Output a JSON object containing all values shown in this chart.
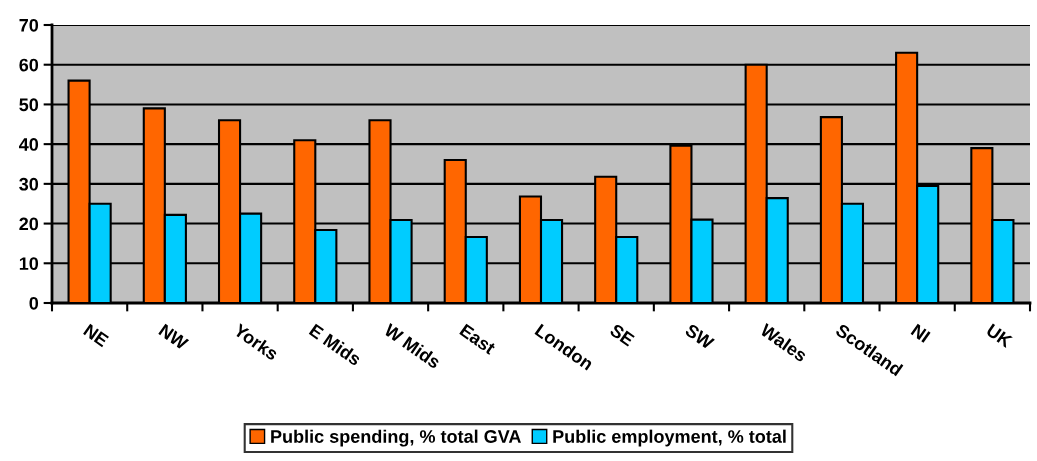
{
  "chart_data": {
    "type": "bar",
    "categories": [
      "NE",
      "NW",
      "Yorks",
      "E Mids",
      "W Mids",
      "East",
      "London",
      "SE",
      "SW",
      "Wales",
      "Scotland",
      "NI",
      "UK"
    ],
    "series": [
      {
        "name": "Public spending, % total GVA",
        "color": "#ff6600",
        "values": [
          56,
          49,
          46,
          41,
          46,
          36,
          26.8,
          31.8,
          39.6,
          60,
          46.8,
          63,
          39
        ]
      },
      {
        "name": "Public employment, % total",
        "color": "#00ccff",
        "values": [
          25,
          22.2,
          22.5,
          18.4,
          20.9,
          16.6,
          20.9,
          16.6,
          21,
          26.4,
          25,
          29.5,
          20.9
        ]
      }
    ],
    "ylim": [
      0,
      70
    ],
    "yticks": [
      0,
      10,
      20,
      30,
      40,
      50,
      60,
      70
    ],
    "grid": "y",
    "legend": "bottom"
  }
}
